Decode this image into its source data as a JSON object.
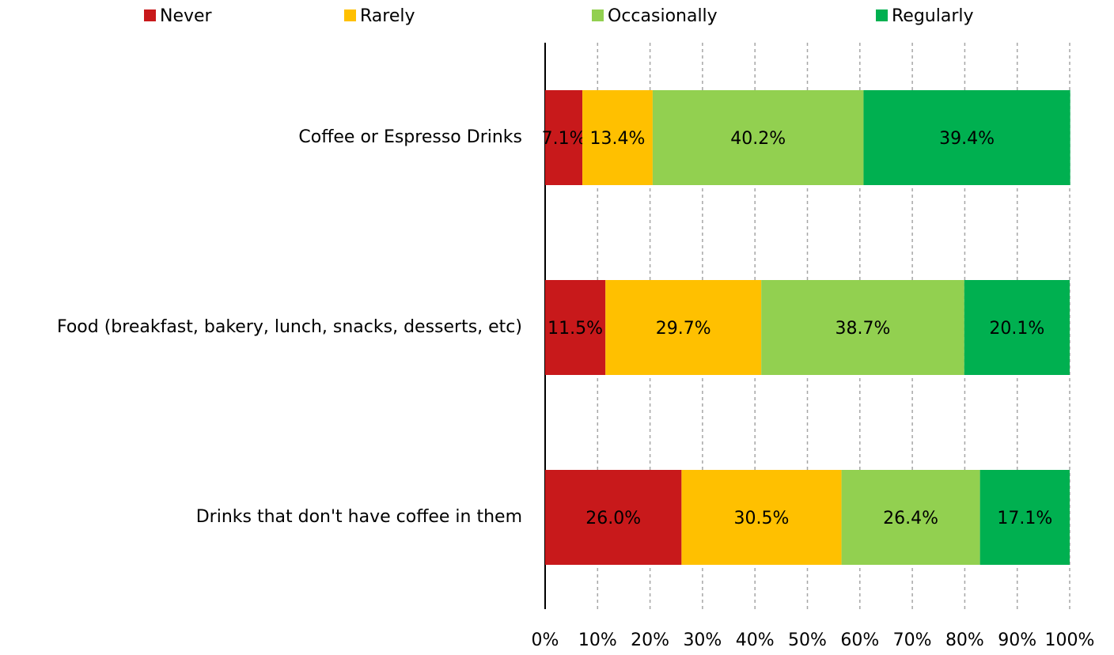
{
  "chart_data": {
    "type": "stacked_barh",
    "categories": [
      "Coffee or Espresso Drinks",
      "Food (breakfast, bakery, lunch, snacks, desserts, etc)",
      "Drinks that don't have coffee in them"
    ],
    "series": [
      {
        "name": "Never",
        "color": "#c8191b",
        "values": [
          7.1,
          11.5,
          26.0
        ],
        "value_labels": [
          "7.1%",
          "11.5%",
          "26.0%"
        ]
      },
      {
        "name": "Rarely",
        "color": "#ffc000",
        "values": [
          13.4,
          29.7,
          30.5
        ],
        "value_labels": [
          "13.4%",
          "29.7%",
          "30.5%"
        ]
      },
      {
        "name": "Occasionally",
        "color": "#92d050",
        "values": [
          40.2,
          38.7,
          26.4
        ],
        "value_labels": [
          "40.2%",
          "38.7%",
          "26.4%"
        ]
      },
      {
        "name": "Regularly",
        "color": "#00b050",
        "values": [
          39.4,
          20.1,
          17.1
        ],
        "value_labels": [
          "39.4%",
          "20.1%",
          "17.1%"
        ]
      }
    ],
    "xlim": [
      0,
      100
    ],
    "xticks": [
      {
        "value": 0,
        "label": "0%"
      },
      {
        "value": 10,
        "label": "10%"
      },
      {
        "value": 20,
        "label": "20%"
      },
      {
        "value": 30,
        "label": "30%"
      },
      {
        "value": 40,
        "label": "40%"
      },
      {
        "value": 50,
        "label": "50%"
      },
      {
        "value": 60,
        "label": "60%"
      },
      {
        "value": 70,
        "label": "70%"
      },
      {
        "value": 80,
        "label": "80%"
      },
      {
        "value": 90,
        "label": "90%"
      },
      {
        "value": 100,
        "label": "100%"
      }
    ],
    "grid": true,
    "legend": "top"
  }
}
